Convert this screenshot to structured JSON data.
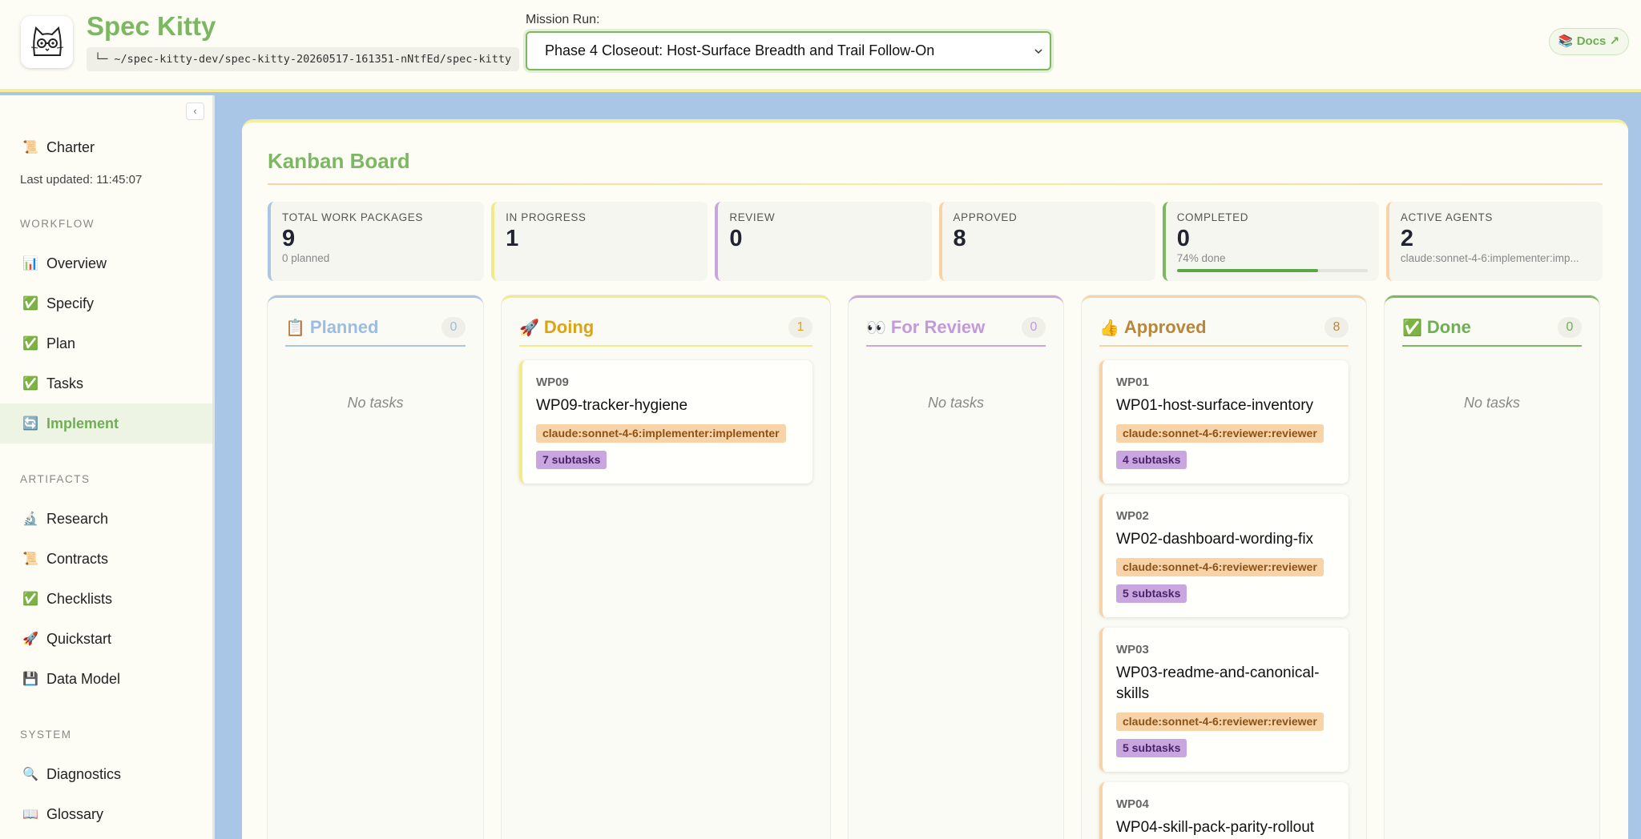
{
  "header": {
    "title": "Spec Kitty",
    "path": "└─ ~/spec-kitty-dev/spec-kitty-20260517-161351-nNtfEd/spec-kitty",
    "mission_label": "Mission Run:",
    "mission_selected": "Phase 4 Closeout: Host-Surface Breadth and Trail Follow-On",
    "docs": "📚 Docs ↗"
  },
  "sidebar": {
    "collapse": "‹",
    "charter": {
      "icon": "📜",
      "label": "Charter"
    },
    "last_updated": "Last updated: 11:45:07",
    "sections": [
      {
        "title": "WORKFLOW",
        "items": [
          {
            "icon": "📊",
            "label": "Overview"
          },
          {
            "icon": "✅",
            "label": "Specify"
          },
          {
            "icon": "✅",
            "label": "Plan"
          },
          {
            "icon": "✅",
            "label": "Tasks"
          },
          {
            "icon": "🔄",
            "label": "Implement",
            "active": true
          }
        ]
      },
      {
        "title": "ARTIFACTS",
        "items": [
          {
            "icon": "🔬",
            "label": "Research"
          },
          {
            "icon": "📜",
            "label": "Contracts"
          },
          {
            "icon": "✅",
            "label": "Checklists"
          },
          {
            "icon": "🚀",
            "label": "Quickstart"
          },
          {
            "icon": "💾",
            "label": "Data Model"
          }
        ]
      },
      {
        "title": "SYSTEM",
        "items": [
          {
            "icon": "🔍",
            "label": "Diagnostics"
          },
          {
            "icon": "📖",
            "label": "Glossary"
          }
        ]
      }
    ]
  },
  "board": {
    "title": "Kanban Board",
    "stats": [
      {
        "label": "TOTAL WORK PACKAGES",
        "value": "9",
        "sub": "0 planned",
        "color": "#a9c6e6"
      },
      {
        "label": "IN PROGRESS",
        "value": "1",
        "color": "#f3ea8a"
      },
      {
        "label": "REVIEW",
        "value": "0",
        "color": "#c9a6e0"
      },
      {
        "label": "APPROVED",
        "value": "8",
        "color": "#f8d3a8"
      },
      {
        "label": "COMPLETED",
        "value": "0",
        "sub": "74% done",
        "progress": 74,
        "color": "#7cb861"
      },
      {
        "label": "ACTIVE AGENTS",
        "value": "2",
        "sub": "claude:sonnet-4-6:implementer:imp...",
        "color": "#f8d3a8"
      }
    ],
    "empty_text": "No tasks",
    "columns": [
      {
        "icon": "📋",
        "name": "Planned",
        "count": "0",
        "color": "#a9c6e6",
        "title_color": "#9dbde0",
        "tasks": []
      },
      {
        "icon": "🚀",
        "name": "Doing",
        "count": "1",
        "color": "#f3ea8a",
        "title_color": "#d9a514",
        "tasks": [
          {
            "id": "WP09",
            "title": "WP09-tracker-hygiene",
            "agent": "claude:sonnet-4-6:implementer:implementer",
            "subtasks": "7 subtasks"
          }
        ]
      },
      {
        "icon": "👀",
        "name": "For Review",
        "count": "0",
        "color": "#c9a6e0",
        "title_color": "#c39ad9",
        "tasks": []
      },
      {
        "icon": "👍",
        "name": "Approved",
        "count": "8",
        "color": "#f8d3a8",
        "title_color": "#b8873a",
        "tasks": [
          {
            "id": "WP01",
            "title": "WP01-host-surface-inventory",
            "agent": "claude:sonnet-4-6:reviewer:reviewer",
            "subtasks": "4 subtasks"
          },
          {
            "id": "WP02",
            "title": "WP02-dashboard-wording-fix",
            "agent": "claude:sonnet-4-6:reviewer:reviewer",
            "subtasks": "5 subtasks"
          },
          {
            "id": "WP03",
            "title": "WP03-readme-and-canonical-skills",
            "agent": "claude:sonnet-4-6:reviewer:reviewer",
            "subtasks": "5 subtasks"
          },
          {
            "id": "WP04",
            "title": "WP04-skill-pack-parity-rollout"
          }
        ]
      },
      {
        "icon": "✅",
        "name": "Done",
        "count": "0",
        "color": "#7cb861",
        "title_color": "#6fae55",
        "tasks": []
      }
    ]
  }
}
